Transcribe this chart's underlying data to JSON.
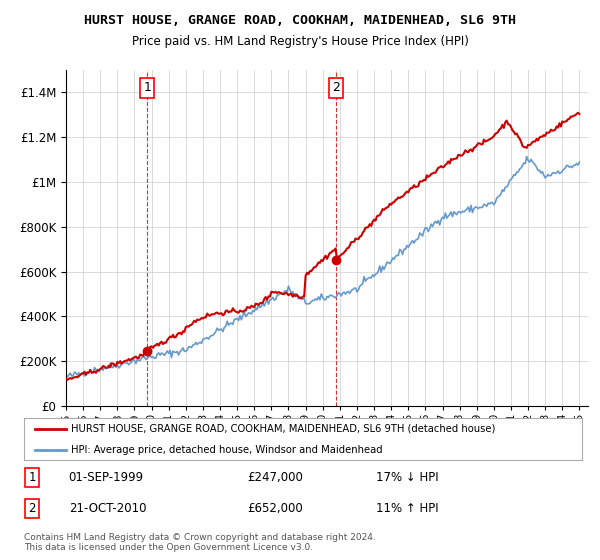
{
  "title": "HURST HOUSE, GRANGE ROAD, COOKHAM, MAIDENHEAD, SL6 9TH",
  "subtitle": "Price paid vs. HM Land Registry's House Price Index (HPI)",
  "ylim": [
    0,
    1500000
  ],
  "yticks": [
    0,
    200000,
    400000,
    600000,
    800000,
    1000000,
    1200000,
    1400000
  ],
  "ytick_labels": [
    "£0",
    "£200K",
    "£400K",
    "£600K",
    "£800K",
    "£1M",
    "£1.2M",
    "£1.4M"
  ],
  "sale1_date": "01-SEP-1999",
  "sale1_price": 247000,
  "sale1_hpi": "17% ↓ HPI",
  "sale1_x": 1999.75,
  "sale2_date": "21-OCT-2010",
  "sale2_price": 652000,
  "sale2_hpi": "11% ↑ HPI",
  "sale2_x": 2010.8,
  "legend_line1": "HURST HOUSE, GRANGE ROAD, COOKHAM, MAIDENHEAD, SL6 9TH (detached house)",
  "legend_line2": "HPI: Average price, detached house, Windsor and Maidenhead",
  "footnote1": "Contains HM Land Registry data © Crown copyright and database right 2024.",
  "footnote2": "This data is licensed under the Open Government Licence v3.0.",
  "house_color": "#cc0000",
  "hpi_color": "#6699cc",
  "background_color": "#ffffff",
  "grid_color": "#cccccc"
}
